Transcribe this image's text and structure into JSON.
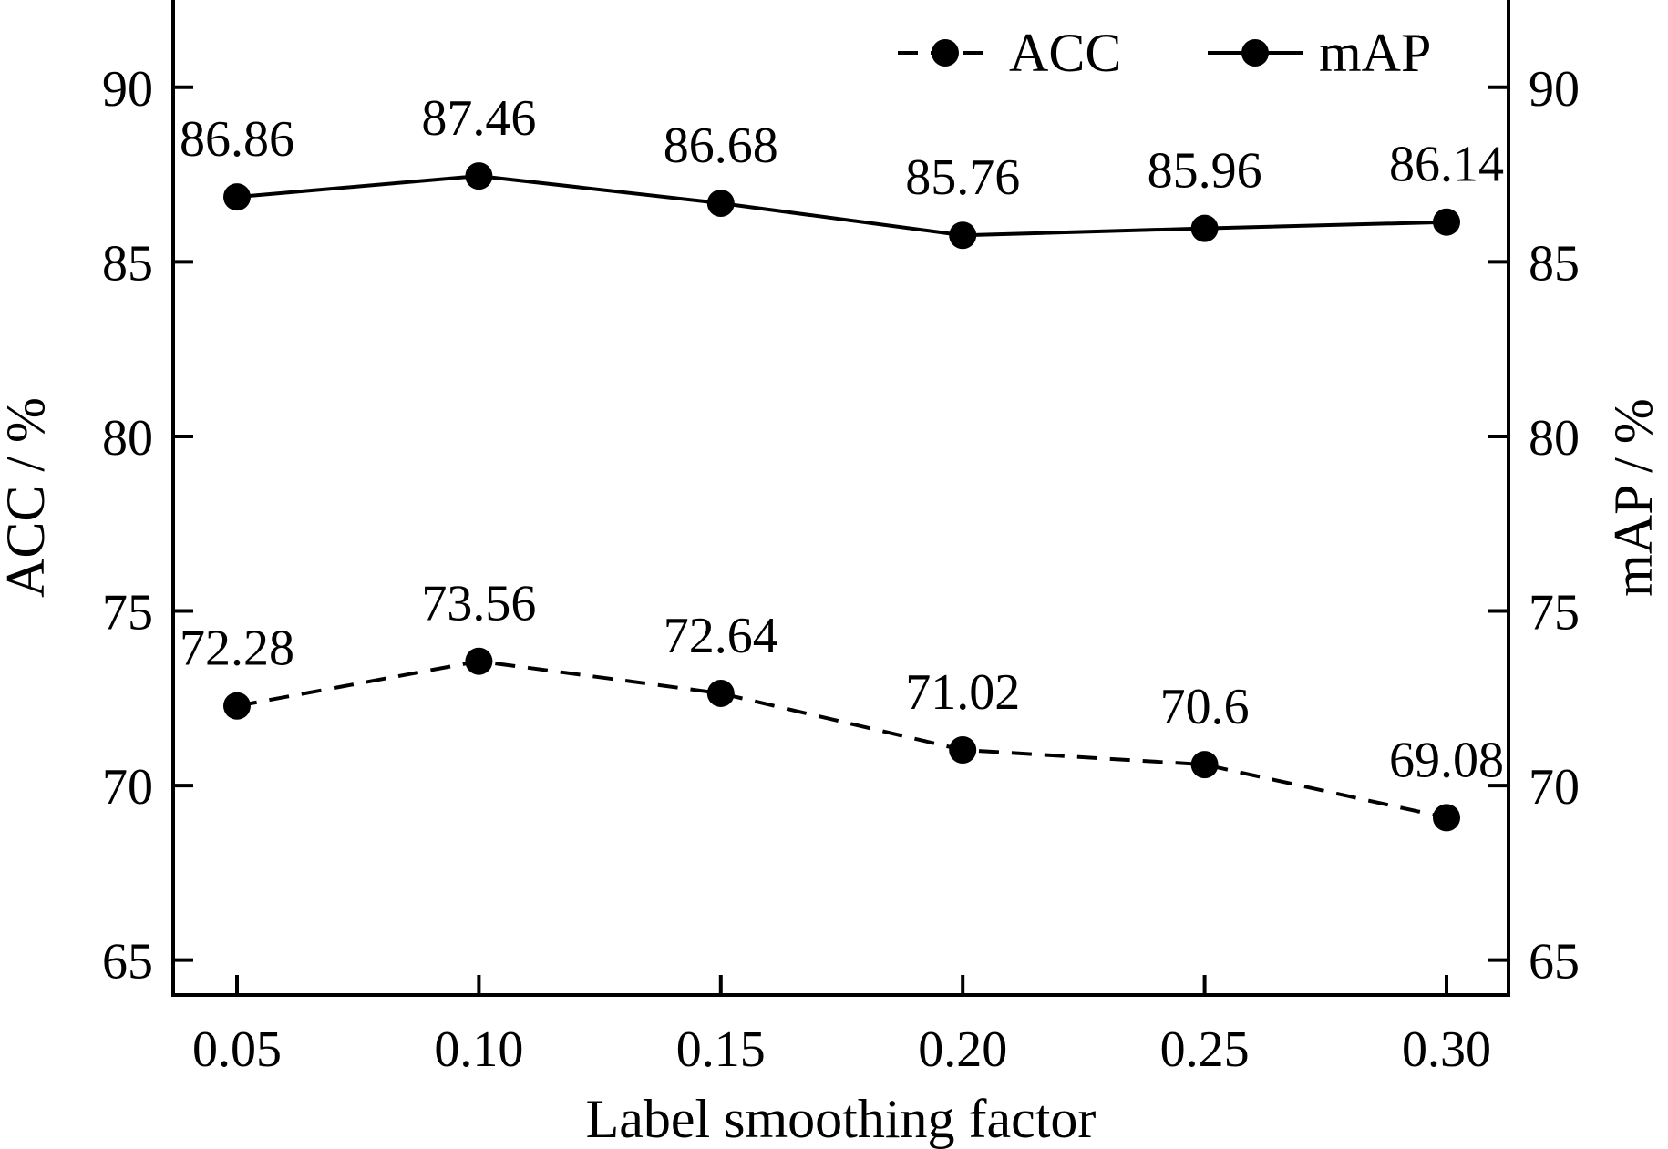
{
  "chart_data": {
    "type": "line",
    "categories": [
      "0.05",
      "0.10",
      "0.15",
      "0.20",
      "0.25",
      "0.30"
    ],
    "xlabel": "Label smoothing factor",
    "ylabel_left": "ACC / %",
    "ylabel_right": "mAP / %",
    "ylim": [
      64,
      92.5
    ],
    "yticks": [
      "65",
      "70",
      "75",
      "80",
      "85",
      "90"
    ],
    "grid": false,
    "legend_position": "top-right",
    "series": [
      {
        "name": "ACC",
        "style": "dashed",
        "color": "#000000",
        "values": [
          72.28,
          73.56,
          72.64,
          71.02,
          70.6,
          69.08
        ],
        "labels": [
          "72.28",
          "73.56",
          "72.64",
          "71.02",
          "70.6",
          "69.08"
        ]
      },
      {
        "name": "mAP",
        "style": "solid",
        "color": "#000000",
        "values": [
          86.86,
          87.46,
          86.68,
          85.76,
          85.96,
          86.14
        ],
        "labels": [
          "86.86",
          "87.46",
          "86.68",
          "85.76",
          "85.96",
          "86.14"
        ]
      }
    ]
  }
}
